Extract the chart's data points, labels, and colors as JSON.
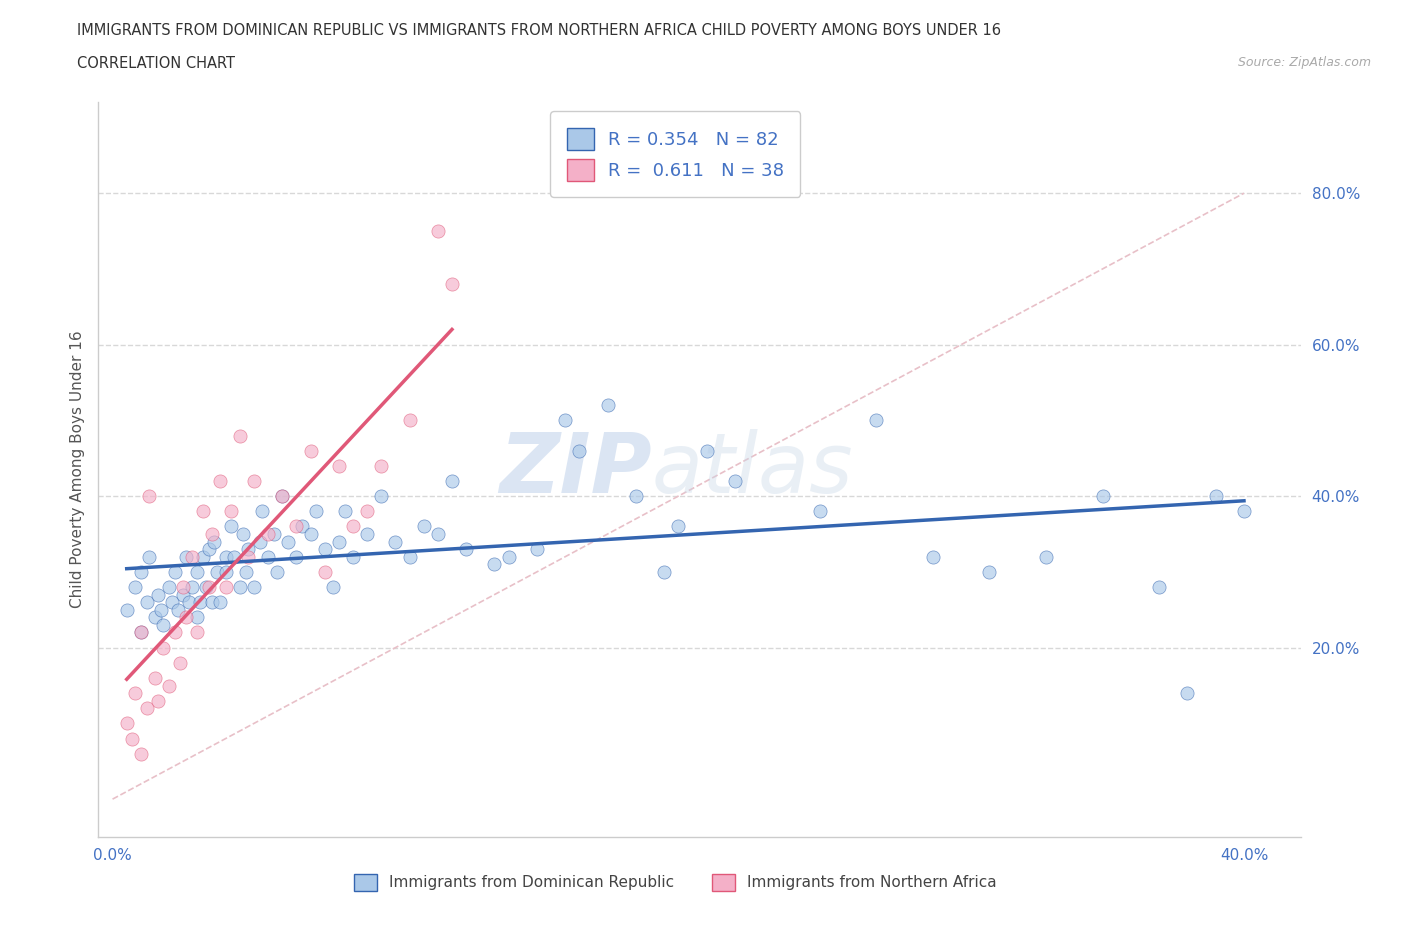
{
  "title_line1": "IMMIGRANTS FROM DOMINICAN REPUBLIC VS IMMIGRANTS FROM NORTHERN AFRICA CHILD POVERTY AMONG BOYS UNDER 16",
  "title_line2": "CORRELATION CHART",
  "source": "Source: ZipAtlas.com",
  "ylabel": "Child Poverty Among Boys Under 16",
  "xlim": [
    -0.005,
    0.42
  ],
  "ylim": [
    -0.05,
    0.92
  ],
  "xtick_vals": [
    0.0,
    0.1,
    0.2,
    0.3,
    0.4
  ],
  "xticklabels": [
    "0.0%",
    "",
    "",
    "",
    "40.0%"
  ],
  "ytick_vals": [
    0.2,
    0.4,
    0.6,
    0.8
  ],
  "yticklabels": [
    "20.0%",
    "40.0%",
    "60.0%",
    "80.0%"
  ],
  "R_blue": 0.354,
  "N_blue": 82,
  "R_pink": 0.611,
  "N_pink": 38,
  "color_blue": "#aac8e8",
  "color_pink": "#f4b0c8",
  "line_blue": "#3465b0",
  "line_pink": "#e05878",
  "watermark_zip": "ZIP",
  "watermark_atlas": "atlas",
  "legend_label_blue": "Immigrants from Dominican Republic",
  "legend_label_pink": "Immigrants from Northern Africa",
  "blue_x": [
    0.005,
    0.008,
    0.01,
    0.01,
    0.012,
    0.013,
    0.015,
    0.016,
    0.017,
    0.018,
    0.02,
    0.021,
    0.022,
    0.023,
    0.025,
    0.026,
    0.027,
    0.028,
    0.03,
    0.03,
    0.031,
    0.032,
    0.033,
    0.034,
    0.035,
    0.036,
    0.037,
    0.038,
    0.04,
    0.04,
    0.042,
    0.043,
    0.045,
    0.046,
    0.047,
    0.048,
    0.05,
    0.052,
    0.053,
    0.055,
    0.057,
    0.058,
    0.06,
    0.062,
    0.065,
    0.067,
    0.07,
    0.072,
    0.075,
    0.078,
    0.08,
    0.082,
    0.085,
    0.09,
    0.095,
    0.1,
    0.105,
    0.11,
    0.115,
    0.12,
    0.125,
    0.135,
    0.14,
    0.15,
    0.16,
    0.165,
    0.175,
    0.185,
    0.195,
    0.2,
    0.21,
    0.22,
    0.25,
    0.27,
    0.29,
    0.31,
    0.33,
    0.35,
    0.37,
    0.38,
    0.39,
    0.4
  ],
  "blue_y": [
    0.25,
    0.28,
    0.22,
    0.3,
    0.26,
    0.32,
    0.24,
    0.27,
    0.25,
    0.23,
    0.28,
    0.26,
    0.3,
    0.25,
    0.27,
    0.32,
    0.26,
    0.28,
    0.24,
    0.3,
    0.26,
    0.32,
    0.28,
    0.33,
    0.26,
    0.34,
    0.3,
    0.26,
    0.32,
    0.3,
    0.36,
    0.32,
    0.28,
    0.35,
    0.3,
    0.33,
    0.28,
    0.34,
    0.38,
    0.32,
    0.35,
    0.3,
    0.4,
    0.34,
    0.32,
    0.36,
    0.35,
    0.38,
    0.33,
    0.28,
    0.34,
    0.38,
    0.32,
    0.35,
    0.4,
    0.34,
    0.32,
    0.36,
    0.35,
    0.42,
    0.33,
    0.31,
    0.32,
    0.33,
    0.5,
    0.46,
    0.52,
    0.4,
    0.3,
    0.36,
    0.46,
    0.42,
    0.38,
    0.5,
    0.32,
    0.3,
    0.32,
    0.4,
    0.28,
    0.14,
    0.4,
    0.38
  ],
  "pink_x": [
    0.005,
    0.007,
    0.008,
    0.01,
    0.01,
    0.012,
    0.013,
    0.015,
    0.016,
    0.018,
    0.02,
    0.022,
    0.024,
    0.025,
    0.026,
    0.028,
    0.03,
    0.032,
    0.034,
    0.035,
    0.038,
    0.04,
    0.042,
    0.045,
    0.048,
    0.05,
    0.055,
    0.06,
    0.065,
    0.07,
    0.075,
    0.08,
    0.085,
    0.09,
    0.095,
    0.105,
    0.115,
    0.12
  ],
  "pink_y": [
    0.1,
    0.08,
    0.14,
    0.06,
    0.22,
    0.12,
    0.4,
    0.16,
    0.13,
    0.2,
    0.15,
    0.22,
    0.18,
    0.28,
    0.24,
    0.32,
    0.22,
    0.38,
    0.28,
    0.35,
    0.42,
    0.28,
    0.38,
    0.48,
    0.32,
    0.42,
    0.35,
    0.4,
    0.36,
    0.46,
    0.3,
    0.44,
    0.36,
    0.38,
    0.44,
    0.5,
    0.75,
    0.68
  ]
}
